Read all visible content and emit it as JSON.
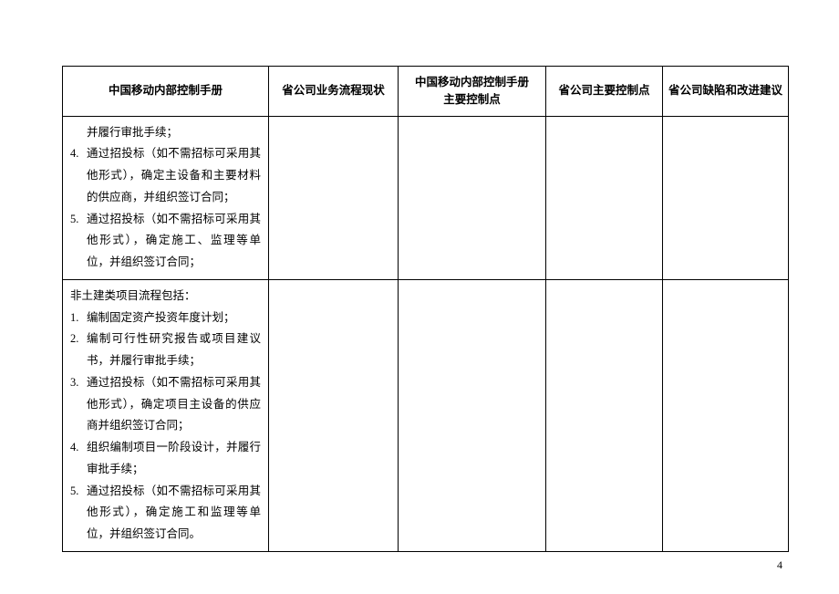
{
  "table": {
    "headers": {
      "c1": "中国移动内部控制手册",
      "c2": "省公司业务流程现状",
      "c3": "中国移动内部控制手册\n主要控制点",
      "c4": "省公司主要控制点",
      "c5": "省公司缺陷和改进建议"
    },
    "row1": {
      "cont": "并履行审批手续；",
      "i4n": "4.",
      "i4t": "通过招投标（如不需招标可采用其他形式），确定主设备和主要材料的供应商，并组织签订合同；",
      "i5n": "5.",
      "i5t": "通过招投标（如不需招标可采用其他形式），确定施工、监理等单位，并组织签订合同；"
    },
    "row2": {
      "lead": "非土建类项目流程包括：",
      "i1n": "1.",
      "i1t": "编制固定资产投资年度计划；",
      "i2n": "2.",
      "i2t": "编制可行性研究报告或项目建议书，并履行审批手续；",
      "i3n": "3.",
      "i3t": "通过招投标（如不需招标可采用其他形式），确定项目主设备的供应商并组织签订合同；",
      "i4n": "4.",
      "i4t": "组织编制项目一阶段设计，并履行审批手续；",
      "i5n": "5.",
      "i5t": "通过招投标（如不需招标可采用其他形式），确定施工和监理等单位，并组织签订合同。"
    }
  },
  "pageNumber": "4"
}
